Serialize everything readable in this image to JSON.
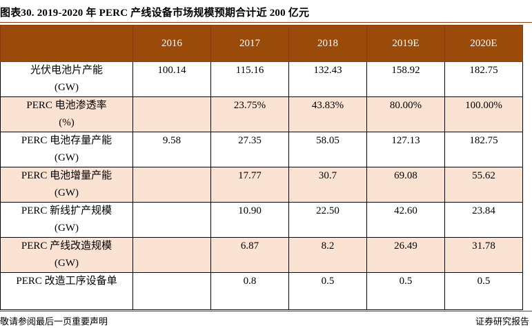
{
  "title": "图表30.  2019-2020 年 PERC 产线设备市场规模预期合计近 200 亿元",
  "table": {
    "years": [
      "2016",
      "2017",
      "2018",
      "2019E",
      "2020E"
    ],
    "rows": [
      {
        "label": "光伏电池片产能\n(GW)",
        "values": [
          "100.14",
          "115.16",
          "132.43",
          "158.92",
          "182.75"
        ]
      },
      {
        "label": "PERC 电池渗透率\n(%)",
        "values": [
          "",
          "23.75%",
          "43.83%",
          "80.00%",
          "100.00%"
        ]
      },
      {
        "label": "PERC 电池存量产能\n(GW)",
        "values": [
          "9.58",
          "27.35",
          "58.05",
          "127.13",
          "182.75"
        ]
      },
      {
        "label": "PERC 电池增量产能\n(GW)",
        "values": [
          "",
          "17.77",
          "30.7",
          "69.08",
          "55.62"
        ]
      },
      {
        "label": "PERC 新线扩产规模\n(GW)",
        "values": [
          "",
          "10.90",
          "22.50",
          "42.60",
          "23.84"
        ]
      },
      {
        "label": "PERC 产线改造规模\n(GW)",
        "values": [
          "",
          "6.87",
          "8.2",
          "26.49",
          "31.78"
        ]
      },
      {
        "label": "PERC 改造工序设备单",
        "values": [
          "",
          "0.8",
          "0.5",
          "0.5",
          "0.5"
        ]
      }
    ]
  },
  "footer": {
    "left": "敬请参阅最后一页重要声明",
    "right": "证券研究报告"
  },
  "colors": {
    "header_bg": "#9a4a09",
    "shaded_row_bg": "#fbe3d4",
    "rule": "#8a3a10"
  }
}
